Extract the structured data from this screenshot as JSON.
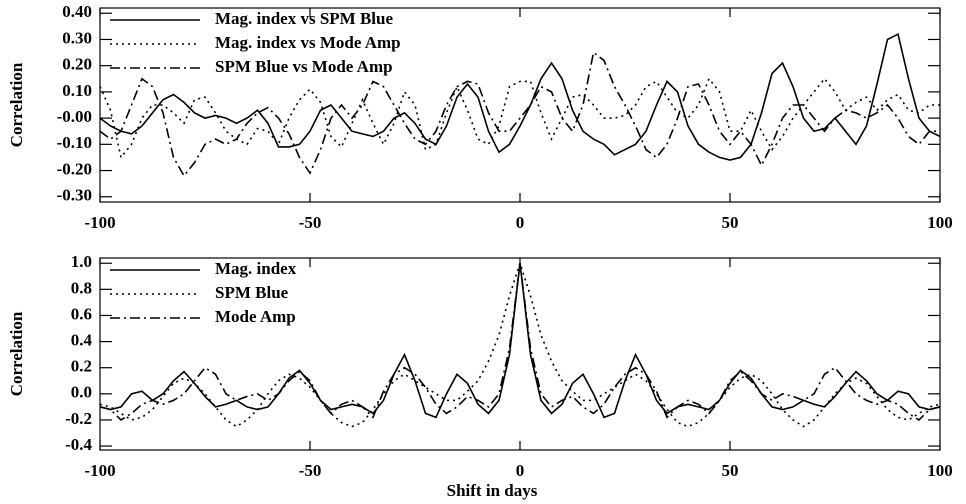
{
  "chart_data": [
    {
      "type": "line",
      "y_label": "Correlation",
      "x": [
        -100,
        -97.5,
        -95,
        -92.5,
        -90,
        -87.5,
        -85,
        -82.5,
        -80,
        -77.5,
        -75,
        -72.5,
        -70,
        -67.5,
        -65,
        -62.5,
        -60,
        -57.5,
        -55,
        -52.5,
        -50,
        -47.5,
        -45,
        -42.5,
        -40,
        -37.5,
        -35,
        -32.5,
        -30,
        -27.5,
        -25,
        -22.5,
        -20,
        -17.5,
        -15,
        -12.5,
        -10,
        -7.5,
        -5,
        -2.5,
        0,
        2.5,
        5,
        7.5,
        10,
        12.5,
        15,
        17.5,
        20,
        22.5,
        25,
        27.5,
        30,
        32.5,
        35,
        37.5,
        40,
        42.5,
        45,
        47.5,
        50,
        52.5,
        55,
        57.5,
        60,
        62.5,
        65,
        67.5,
        70,
        72.5,
        75,
        77.5,
        80,
        82.5,
        85,
        87.5,
        90,
        92.5,
        95,
        97.5,
        100
      ],
      "xlim": [
        -100,
        100
      ],
      "xticks": [
        -100,
        -50,
        0,
        50,
        100
      ],
      "ylim": [
        -0.32,
        0.42
      ],
      "yticks": [
        {
          "value": 0.4,
          "label": "0.40"
        },
        {
          "value": 0.3,
          "label": "0.30"
        },
        {
          "value": 0.2,
          "label": "0.20"
        },
        {
          "value": 0.1,
          "label": "0.10"
        },
        {
          "value": 0,
          "label": "-0.00"
        },
        {
          "value": -0.1,
          "label": "-0.10"
        },
        {
          "value": -0.2,
          "label": "-0.20"
        },
        {
          "value": -0.3,
          "label": "-0.30"
        }
      ],
      "legend": "upper left",
      "series": [
        {
          "name": "Mag. index vs SPM Blue",
          "color": "#000000",
          "linestyle": "solid",
          "values": [
            0.0,
            -0.03,
            -0.05,
            -0.06,
            -0.03,
            0.02,
            0.07,
            0.09,
            0.06,
            0.02,
            0.0,
            0.01,
            0.0,
            -0.02,
            0.0,
            0.03,
            -0.02,
            -0.11,
            -0.11,
            -0.1,
            -0.05,
            0.03,
            0.05,
            0.0,
            -0.05,
            -0.06,
            -0.07,
            -0.05,
            0.0,
            0.02,
            -0.02,
            -0.08,
            -0.1,
            -0.03,
            0.08,
            0.13,
            0.08,
            -0.05,
            -0.13,
            -0.1,
            -0.03,
            0.05,
            0.15,
            0.21,
            0.15,
            0.03,
            -0.05,
            -0.08,
            -0.1,
            -0.14,
            -0.12,
            -0.1,
            -0.05,
            0.05,
            0.14,
            0.1,
            -0.03,
            -0.1,
            -0.13,
            -0.15,
            -0.16,
            -0.15,
            -0.1,
            0.02,
            0.17,
            0.21,
            0.12,
            0.0,
            -0.05,
            -0.04,
            0.0,
            -0.05,
            -0.1,
            -0.03,
            0.13,
            0.3,
            0.32,
            0.15,
            0.0,
            -0.05,
            -0.07
          ]
        },
        {
          "name": "Mag. index vs Mode Amp",
          "color": "#000000",
          "linestyle": "dotted",
          "values": [
            0.12,
            0.03,
            -0.15,
            -0.1,
            0.0,
            0.05,
            0.05,
            0.02,
            -0.02,
            0.07,
            0.08,
            0.02,
            -0.05,
            -0.08,
            -0.1,
            -0.04,
            -0.05,
            -0.1,
            0.0,
            0.07,
            0.11,
            0.06,
            -0.07,
            -0.11,
            -0.02,
            0.07,
            -0.02,
            -0.1,
            -0.02,
            0.1,
            0.05,
            -0.12,
            -0.1,
            0.02,
            0.12,
            0.03,
            -0.08,
            -0.1,
            -0.03,
            0.12,
            0.14,
            0.14,
            0.02,
            -0.08,
            0.0,
            0.08,
            0.09,
            0.05,
            0.0,
            0.0,
            0.01,
            0.05,
            0.12,
            0.14,
            0.08,
            0.02,
            0.0,
            0.05,
            0.15,
            0.1,
            -0.05,
            -0.05,
            0.03,
            -0.05,
            -0.12,
            -0.07,
            0.0,
            0.05,
            0.1,
            0.15,
            0.1,
            0.03,
            0.06,
            0.08,
            0.03,
            0.07,
            0.09,
            0.03,
            0.02,
            0.05,
            0.05
          ]
        },
        {
          "name": "SPM Blue vs Mode Amp",
          "color": "#000000",
          "linestyle": "dashdot",
          "values": [
            -0.05,
            -0.08,
            -0.05,
            0.05,
            0.15,
            0.12,
            0.02,
            -0.15,
            -0.22,
            -0.17,
            -0.1,
            -0.08,
            -0.1,
            -0.08,
            -0.02,
            0.02,
            0.04,
            0.0,
            -0.06,
            -0.15,
            -0.21,
            -0.12,
            0.0,
            0.05,
            0.0,
            0.05,
            0.14,
            0.12,
            0.05,
            -0.02,
            -0.08,
            -0.1,
            -0.05,
            0.05,
            0.12,
            0.14,
            0.13,
            0.02,
            -0.05,
            -0.05,
            0.0,
            0.05,
            0.12,
            0.1,
            0.0,
            -0.05,
            0.05,
            0.25,
            0.22,
            0.12,
            0.05,
            -0.03,
            -0.12,
            -0.15,
            -0.1,
            0.0,
            0.12,
            0.13,
            0.05,
            -0.05,
            -0.1,
            -0.05,
            -0.1,
            -0.18,
            -0.1,
            0.0,
            0.05,
            0.05,
            0.0,
            -0.05,
            0.0,
            0.03,
            0.02,
            0.0,
            0.02,
            0.05,
            0.0,
            -0.07,
            -0.1,
            -0.05,
            -0.05
          ]
        }
      ]
    },
    {
      "type": "line",
      "y_label": "Correlation",
      "x_label": "Shift in days",
      "x": [
        -100,
        -97.5,
        -95,
        -92.5,
        -90,
        -87.5,
        -85,
        -82.5,
        -80,
        -77.5,
        -75,
        -72.5,
        -70,
        -67.5,
        -65,
        -62.5,
        -60,
        -57.5,
        -55,
        -52.5,
        -50,
        -47.5,
        -45,
        -42.5,
        -40,
        -37.5,
        -35,
        -32.5,
        -30,
        -27.5,
        -25,
        -22.5,
        -20,
        -17.5,
        -15,
        -12.5,
        -10,
        -7.5,
        -5,
        -2.5,
        0,
        2.5,
        5,
        7.5,
        10,
        12.5,
        15,
        17.5,
        20,
        22.5,
        25,
        27.5,
        30,
        32.5,
        35,
        37.5,
        40,
        42.5,
        45,
        47.5,
        50,
        52.5,
        55,
        57.5,
        60,
        62.5,
        65,
        67.5,
        70,
        72.5,
        75,
        77.5,
        80,
        82.5,
        85,
        87.5,
        90,
        92.5,
        95,
        97.5,
        100
      ],
      "xlim": [
        -100,
        100
      ],
      "xticks": [
        -100,
        -50,
        0,
        50,
        100
      ],
      "ylim": [
        -0.43,
        1.04
      ],
      "yticks": [
        {
          "value": 1,
          "label": "1.0"
        },
        0.8,
        0.6,
        0.4,
        0.2,
        {
          "value": 0,
          "label": "0.0"
        },
        -0.2,
        -0.4
      ],
      "legend": "upper left",
      "series": [
        {
          "name": "Mag. index",
          "color": "#000000",
          "linestyle": "solid",
          "values": [
            -0.1,
            -0.12,
            -0.1,
            0.0,
            0.02,
            -0.05,
            0.0,
            0.1,
            0.17,
            0.08,
            -0.02,
            -0.1,
            -0.08,
            -0.05,
            -0.1,
            -0.12,
            -0.1,
            0.0,
            0.12,
            0.18,
            0.08,
            -0.05,
            -0.12,
            -0.1,
            -0.08,
            -0.1,
            -0.15,
            -0.05,
            0.15,
            0.3,
            0.1,
            -0.15,
            -0.18,
            0.0,
            0.15,
            0.08,
            -0.08,
            -0.15,
            -0.05,
            0.3,
            1.0,
            0.3,
            -0.05,
            -0.15,
            -0.08,
            0.08,
            0.15,
            0.0,
            -0.18,
            -0.15,
            0.1,
            0.3,
            0.15,
            -0.05,
            -0.15,
            -0.1,
            -0.08,
            -0.1,
            -0.12,
            -0.05,
            0.08,
            0.18,
            0.12,
            0.0,
            -0.1,
            -0.12,
            -0.1,
            -0.05,
            -0.08,
            -0.1,
            -0.02,
            0.08,
            0.17,
            0.1,
            0.0,
            -0.05,
            0.02,
            0.0,
            -0.1,
            -0.12,
            -0.1
          ]
        },
        {
          "name": "SPM Blue",
          "color": "#000000",
          "linestyle": "dotted",
          "values": [
            -0.08,
            -0.1,
            -0.15,
            -0.2,
            -0.18,
            -0.12,
            -0.02,
            0.08,
            0.12,
            0.08,
            0.0,
            -0.1,
            -0.2,
            -0.25,
            -0.2,
            -0.12,
            0.0,
            0.1,
            0.15,
            0.12,
            0.05,
            -0.05,
            -0.15,
            -0.22,
            -0.25,
            -0.22,
            -0.12,
            0.0,
            0.1,
            0.15,
            0.1,
            0.05,
            0.0,
            -0.05,
            -0.05,
            0.02,
            0.1,
            0.25,
            0.45,
            0.75,
            1.0,
            0.75,
            0.45,
            0.25,
            0.1,
            0.02,
            -0.05,
            -0.05,
            0.0,
            0.05,
            0.1,
            0.15,
            0.1,
            0.0,
            -0.12,
            -0.22,
            -0.25,
            -0.22,
            -0.15,
            -0.05,
            0.05,
            0.12,
            0.15,
            0.1,
            0.0,
            -0.12,
            -0.2,
            -0.25,
            -0.2,
            -0.1,
            0.0,
            0.08,
            0.12,
            0.08,
            -0.02,
            -0.12,
            -0.18,
            -0.2,
            -0.15,
            -0.1,
            -0.08
          ]
        },
        {
          "name": "Mode Amp",
          "color": "#000000",
          "linestyle": "dashdot",
          "values": [
            -0.1,
            -0.12,
            -0.2,
            -0.15,
            -0.08,
            -0.05,
            -0.08,
            -0.05,
            0.0,
            0.1,
            0.2,
            0.15,
            0.0,
            -0.05,
            -0.02,
            0.0,
            -0.05,
            0.0,
            0.1,
            0.17,
            0.1,
            -0.05,
            -0.15,
            -0.08,
            -0.05,
            -0.1,
            -0.18,
            0.02,
            0.15,
            0.2,
            0.15,
            0.05,
            -0.08,
            -0.15,
            -0.1,
            -0.02,
            -0.05,
            -0.1,
            0.0,
            0.35,
            1.0,
            0.35,
            0.0,
            -0.1,
            -0.05,
            -0.02,
            -0.1,
            -0.15,
            -0.08,
            0.05,
            0.15,
            0.2,
            0.15,
            0.02,
            -0.18,
            -0.1,
            -0.05,
            -0.08,
            -0.15,
            -0.05,
            0.1,
            0.17,
            0.1,
            0.0,
            -0.05,
            0.0,
            -0.02,
            -0.05,
            0.0,
            0.15,
            0.2,
            0.1,
            0.0,
            -0.05,
            -0.08,
            -0.05,
            -0.08,
            -0.15,
            -0.2,
            -0.12,
            -0.1
          ]
        }
      ]
    }
  ]
}
